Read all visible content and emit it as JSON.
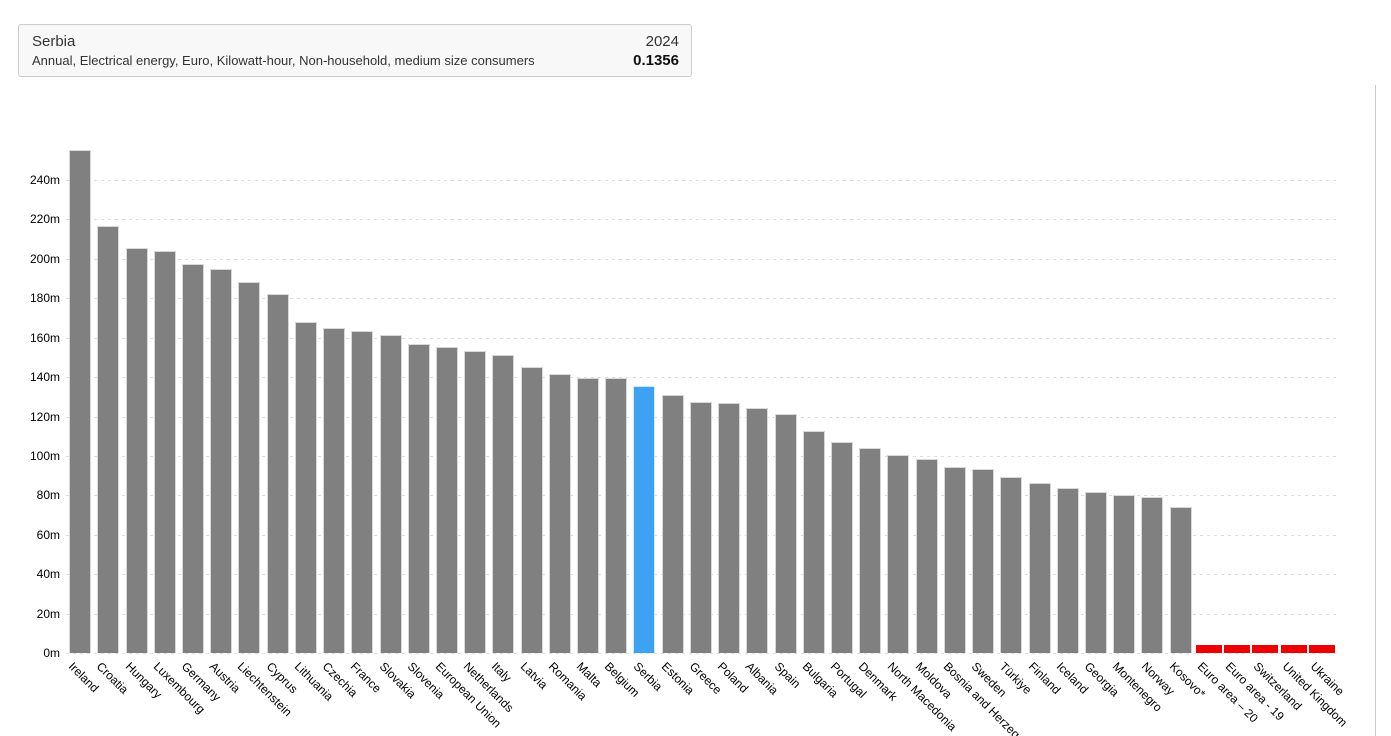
{
  "info_box": {
    "title": "Serbia",
    "subtitle": "Annual, Electrical energy, Euro, Kilowatt-hour, Non-household, medium size consumers",
    "year": "2024",
    "value": "0.1356"
  },
  "chart_data": {
    "type": "bar",
    "title": "",
    "xlabel": "",
    "ylabel": "",
    "unit_suffix": "m",
    "ylim": [
      0,
      260
    ],
    "yticks": [
      0,
      20,
      40,
      60,
      80,
      100,
      120,
      140,
      160,
      180,
      200,
      220,
      240
    ],
    "grid": "horizontal-dashed",
    "legend_position": "none",
    "categories": [
      "Ireland",
      "Croatia",
      "Hungary",
      "Luxembourg",
      "Germany",
      "Austria",
      "Liechtenstein",
      "Cyprus",
      "Lithuania",
      "Czechia",
      "France",
      "Slovakia",
      "Slovenia",
      "European Union",
      "Netherlands",
      "Italy",
      "Latvia",
      "Romania",
      "Malta",
      "Belgium",
      "Serbia",
      "Estonia",
      "Greece",
      "Poland",
      "Albania",
      "Spain",
      "Bulgaria",
      "Portugal",
      "Denmark",
      "North Macedonia",
      "Moldova",
      "Bosnia and Herzegovina",
      "Sweden",
      "Türkiye",
      "Finland",
      "Iceland",
      "Georgia",
      "Montenegro",
      "Norway",
      "Kosovo*",
      "Euro area – 20",
      "Euro area - 19",
      "Switzerland",
      "United Kingdom",
      "Ukraine"
    ],
    "values": [
      255,
      216.5,
      205.5,
      204,
      197.5,
      195,
      188.5,
      182,
      168,
      165,
      163.5,
      161.5,
      157,
      155.5,
      153,
      151,
      145,
      141.5,
      139.5,
      139.3,
      135.6,
      131,
      127.5,
      127,
      124.5,
      121.5,
      112.5,
      107,
      104,
      100.5,
      98.5,
      94.5,
      93.5,
      89.5,
      86.5,
      83.5,
      81.5,
      80,
      79,
      74,
      null,
      null,
      null,
      null,
      null
    ],
    "highlight_index": 20,
    "highlight_category": "Serbia",
    "no_data_categories": [
      "Euro area – 20",
      "Euro area - 19",
      "Switzerland",
      "United Kingdom",
      "Ukraine"
    ],
    "colors": {
      "bar": "#808080",
      "highlight": "#3ea2f3",
      "no_data": "#ee0000",
      "gridline": "#dddddd",
      "axis_text": "#000000"
    }
  }
}
